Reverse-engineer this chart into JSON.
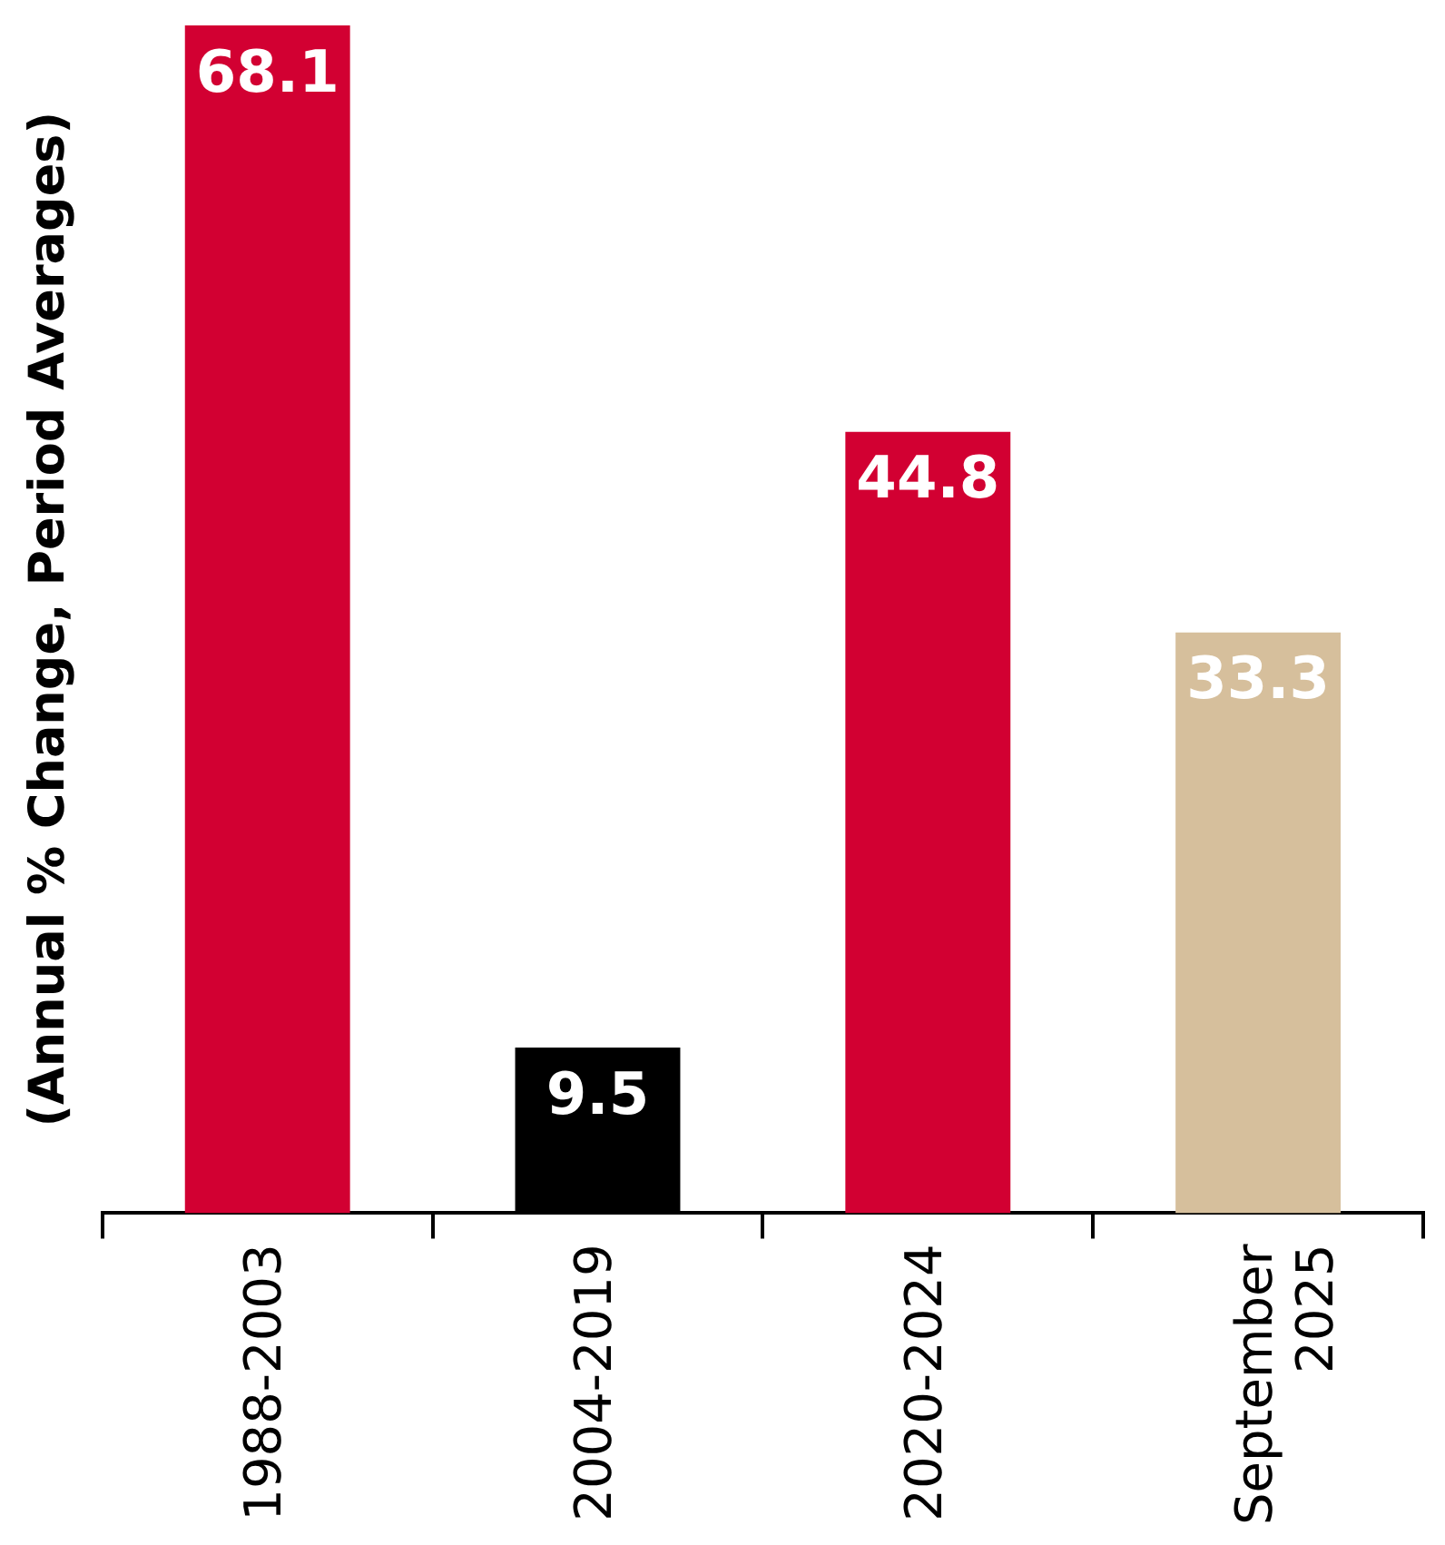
{
  "chart_data": {
    "type": "bar",
    "ylabel": "(Annual % Change, Period Averages)",
    "categories": [
      "1988-2003",
      "2004-2019",
      "2020-2024",
      "September 2025"
    ],
    "values": [
      68.1,
      9.5,
      44.8,
      33.3
    ],
    "colors": [
      "#d20032",
      "#000000",
      "#d20032",
      "#d6bf9c"
    ],
    "data_labels": true,
    "grid": false,
    "legend": false
  }
}
